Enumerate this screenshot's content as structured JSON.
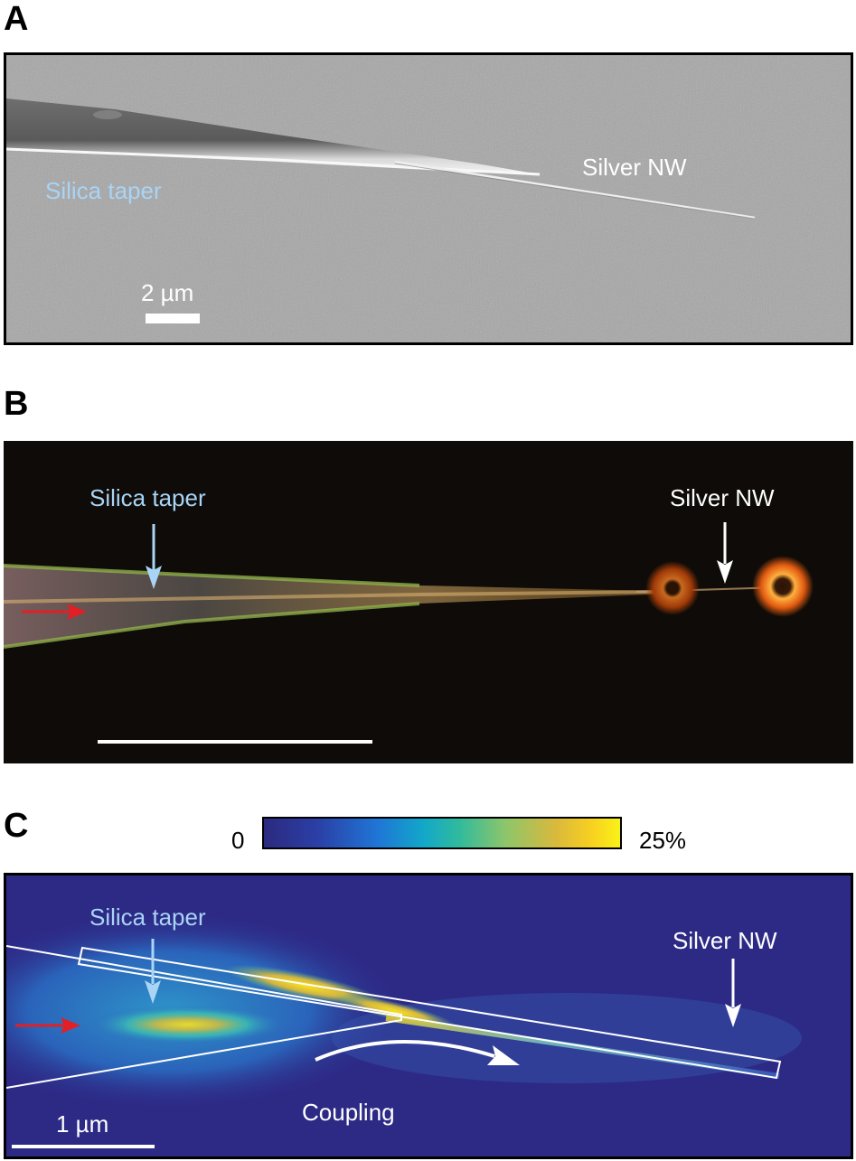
{
  "panel_a": {
    "letter": "A",
    "label_taper": "Silica taper",
    "label_nw": "Silver NW",
    "scalebar": "2 µm"
  },
  "panel_b": {
    "letter": "B",
    "label_taper": "Silica taper",
    "label_nw": "Silver NW"
  },
  "panel_c": {
    "letter": "C",
    "colorbar_min": "0",
    "colorbar_max": "25%",
    "label_taper": "Silica taper",
    "label_nw": "Silver NW",
    "label_coupling": "Coupling",
    "scalebar": "1 µm"
  },
  "colors": {
    "light_blue": "#a9d4f5",
    "red_arrow": "#e31e24",
    "sem_bg": "#a9a9a9",
    "dark_bg": "#0e0b08",
    "field_bg": "#2d2a86"
  }
}
